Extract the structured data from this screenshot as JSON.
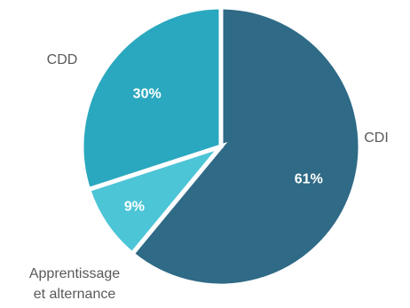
{
  "chart_data": {
    "type": "pie",
    "title": "",
    "slices": [
      {
        "label": "CDI",
        "value": 61,
        "display": "61%",
        "color": "#2f6a86"
      },
      {
        "label": "Apprentissage et alternance",
        "label_lines": [
          "Apprentissage",
          "et alternance"
        ],
        "value": 9,
        "display": "9%",
        "color": "#4cc5d6"
      },
      {
        "label": "CDD",
        "value": 30,
        "display": "30%",
        "color": "#2aa8bf"
      }
    ],
    "legend": "none",
    "start": "12 o'clock",
    "direction": "clockwise"
  }
}
